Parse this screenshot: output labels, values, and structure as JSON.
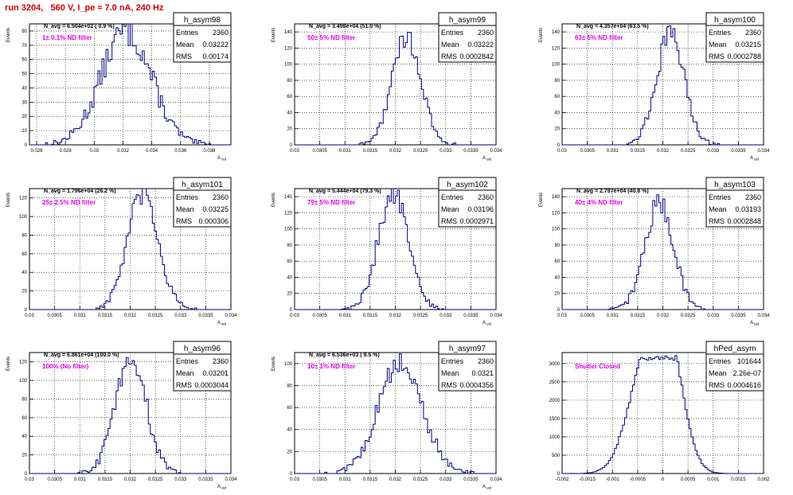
{
  "run_title": "run 3204,   560 V, I_pe ≈ 7.0 nA, 240 Hz",
  "colors": {
    "histogram": "#00007f",
    "label": "#e600e6",
    "title": "#d40000"
  },
  "chart_data": [
    {
      "type": "histogram",
      "name": "h_asym98",
      "ylabel": "Events",
      "xlabel": "A_uid",
      "xlim": [
        0.0255,
        0.0395
      ],
      "ylim": [
        0,
        85
      ],
      "xticks": [
        0.026,
        0.028,
        0.03,
        0.032,
        0.034,
        0.036,
        0.038
      ],
      "xtick_labels": [
        "0.026",
        "0.028",
        "0.03",
        "0.032",
        "0.034",
        "0.036",
        "0.038"
      ],
      "yticks": [
        0,
        10,
        20,
        30,
        40,
        50,
        60,
        70,
        80
      ],
      "nbins": 100,
      "mean": 0.03222,
      "rms": 0.00174,
      "peak": 80,
      "n_avg": "N_avg = 6.504e+02 ( 0.9 %)",
      "filter": "1± 0.1% ND filter",
      "stats": {
        "Entries": "2360",
        "Mean": "0.03222",
        "RMS": "0.00174"
      },
      "grid": true
    },
    {
      "type": "histogram",
      "name": "h_asym99",
      "ylabel": "Events",
      "xlabel": "A_uid",
      "xlim": [
        0.03,
        0.034
      ],
      "ylim": [
        0,
        150
      ],
      "xticks": [
        0.03,
        0.0305,
        0.031,
        0.0315,
        0.032,
        0.0325,
        0.033,
        0.0335,
        0.034
      ],
      "xtick_labels": [
        "0.03",
        "0.0305",
        "0.031",
        "0.0315",
        "0.032",
        "0.0325",
        "0.033",
        "0.0335",
        "0.034"
      ],
      "yticks": [
        0,
        20,
        40,
        60,
        80,
        100,
        120,
        140
      ],
      "nbins": 100,
      "mean": 0.03222,
      "rms": 0.0002842,
      "peak": 135,
      "n_avg": "N_avg = 3.498e+04 (51.0 %)",
      "filter": "50± 5% ND filter",
      "stats": {
        "Entries": "2360",
        "Mean": "0.03222",
        "RMS": "0.0002842"
      },
      "grid": true
    },
    {
      "type": "histogram",
      "name": "h_asym100",
      "ylabel": "Events",
      "xlabel": "A_uid",
      "xlim": [
        0.03,
        0.034
      ],
      "ylim": [
        0,
        150
      ],
      "xticks": [
        0.03,
        0.0305,
        0.031,
        0.0315,
        0.032,
        0.0325,
        0.033,
        0.0335,
        0.034
      ],
      "xtick_labels": [
        "0.03",
        "0.0305",
        "0.031",
        "0.0315",
        "0.032",
        "0.0325",
        "0.033",
        "0.0335",
        "0.034"
      ],
      "yticks": [
        0,
        20,
        40,
        60,
        80,
        100,
        120,
        140
      ],
      "nbins": 100,
      "mean": 0.03215,
      "rms": 0.0002788,
      "peak": 137,
      "n_avg": "N_avg = 4.357e+04 (63.5 %)",
      "filter": "63± 5% ND filter",
      "stats": {
        "Entries": "2360",
        "Mean": "0.03215",
        "RMS": "0.0002788"
      },
      "grid": true
    },
    {
      "type": "histogram",
      "name": "h_asym101",
      "ylabel": "Events",
      "xlabel": "A_uid",
      "xlim": [
        0.03,
        0.034
      ],
      "ylim": [
        0,
        130
      ],
      "xticks": [
        0.03,
        0.0305,
        0.031,
        0.0315,
        0.032,
        0.0325,
        0.033,
        0.0335,
        0.034
      ],
      "xtick_labels": [
        "0.03",
        "0.0305",
        "0.031",
        "0.0315",
        "0.032",
        "0.0325",
        "0.033",
        "0.0335",
        "0.034"
      ],
      "yticks": [
        0,
        20,
        40,
        60,
        80,
        100,
        120
      ],
      "nbins": 100,
      "mean": 0.03225,
      "rms": 0.000306,
      "peak": 124,
      "n_avg": "N_avg = 1.796e+04 (26.2 %)",
      "filter": "25± 2.5% ND filter",
      "stats": {
        "Entries": "2360",
        "Mean": "0.03225",
        "RMS": "0.000306"
      },
      "grid": true
    },
    {
      "type": "histogram",
      "name": "h_asym102",
      "ylabel": "Events",
      "xlabel": "A_uid",
      "xlim": [
        0.03,
        0.034
      ],
      "ylim": [
        0,
        150
      ],
      "xticks": [
        0.03,
        0.0305,
        0.031,
        0.0315,
        0.032,
        0.0325,
        0.033,
        0.0335,
        0.034
      ],
      "xtick_labels": [
        "0.03",
        "0.0305",
        "0.031",
        "0.0315",
        "0.032",
        "0.0325",
        "0.033",
        "0.0335",
        "0.034"
      ],
      "yticks": [
        0,
        20,
        40,
        60,
        80,
        100,
        120,
        140
      ],
      "nbins": 100,
      "mean": 0.03196,
      "rms": 0.0002971,
      "peak": 145,
      "n_avg": "N_avg = 5.444e+04 (79.3 %)",
      "filter": "79± 5% ND filter",
      "stats": {
        "Entries": "2360",
        "Mean": "0.03196",
        "RMS": "0.0002971"
      },
      "grid": true
    },
    {
      "type": "histogram",
      "name": "h_asym103",
      "ylabel": "Events",
      "xlabel": "A_uid",
      "xlim": [
        0.03,
        0.034
      ],
      "ylim": [
        0,
        150
      ],
      "xticks": [
        0.03,
        0.0305,
        0.031,
        0.0315,
        0.032,
        0.0325,
        0.033,
        0.0335,
        0.034
      ],
      "xtick_labels": [
        "0.03",
        "0.0305",
        "0.031",
        "0.0315",
        "0.032",
        "0.0325",
        "0.033",
        "0.0335",
        "0.034"
      ],
      "yticks": [
        0,
        20,
        40,
        60,
        80,
        100,
        120,
        140
      ],
      "nbins": 100,
      "mean": 0.03193,
      "rms": 0.0002848,
      "peak": 132,
      "n_avg": "N_avg = 2.797e+04 (40.8 %)",
      "filter": "40± 4% ND filter",
      "stats": {
        "Entries": "2360",
        "Mean": "0.03193",
        "RMS": "0.0002848"
      },
      "grid": true
    },
    {
      "type": "histogram",
      "name": "h_asym96",
      "ylabel": "Events",
      "xlabel": "A_uid",
      "xlim": [
        0.03,
        0.034
      ],
      "ylim": [
        0,
        130
      ],
      "xticks": [
        0.03,
        0.0305,
        0.031,
        0.0315,
        0.032,
        0.0325,
        0.033,
        0.0335,
        0.034
      ],
      "xtick_labels": [
        "0.03",
        "0.0305",
        "0.031",
        "0.0315",
        "0.032",
        "0.0325",
        "0.033",
        "0.0335",
        "0.034"
      ],
      "yticks": [
        0,
        20,
        40,
        60,
        80,
        100,
        120
      ],
      "nbins": 100,
      "mean": 0.03201,
      "rms": 0.0003044,
      "peak": 126,
      "n_avg": "N_avg = 6.861e+04 (100.0 %)",
      "filter": "100% (No filter)",
      "stats": {
        "Entries": "2360",
        "Mean": "0.03201",
        "RMS": "0.0003044"
      },
      "grid": true
    },
    {
      "type": "histogram",
      "name": "h_asym97",
      "ylabel": "Events",
      "xlabel": "A_uid",
      "xlim": [
        0.03,
        0.034
      ],
      "ylim": [
        0,
        110
      ],
      "xticks": [
        0.03,
        0.0305,
        0.031,
        0.0315,
        0.032,
        0.0325,
        0.033,
        0.0335,
        0.034
      ],
      "xtick_labels": [
        "0.03",
        "0.0305",
        "0.031",
        "0.0315",
        "0.032",
        "0.0325",
        "0.033",
        "0.0335",
        "0.034"
      ],
      "yticks": [
        0,
        20,
        40,
        60,
        80,
        100
      ],
      "nbins": 100,
      "mean": 0.0321,
      "rms": 0.0004356,
      "peak": 100,
      "n_avg": "N_avg = 6.536e+03 ( 9.5 %)",
      "filter": "10± 1% ND filter",
      "stats": {
        "Entries": "2360",
        "Mean": "0.0321",
        "RMS": "0.0004356"
      },
      "grid": true
    },
    {
      "type": "histogram",
      "name": "hPed_asym",
      "ylabel": "",
      "xlabel": "",
      "xlim": [
        -0.002,
        0.002
      ],
      "ylim": [
        0,
        3300
      ],
      "xticks": [
        -0.002,
        -0.0015,
        -0.001,
        -0.0005,
        0,
        0.0005,
        0.001,
        0.0015,
        0.002
      ],
      "xtick_labels": [
        "-0.002",
        "-0.0015",
        "-0.001",
        "-0.0005",
        "0",
        "0.0005",
        "0.001",
        "0.0015",
        "0.002"
      ],
      "yticks": [
        0,
        500,
        1000,
        1500,
        2000,
        2500,
        3000
      ],
      "nbins": 100,
      "mean": 0.0,
      "rms": 0.0004616,
      "peak": 3150,
      "n_avg": "",
      "filter": "Shutter Closed",
      "stats": {
        "Entries": "101644",
        "Mean": "2.26e-07",
        "RMS": "0.0004616"
      },
      "grid": true
    }
  ]
}
